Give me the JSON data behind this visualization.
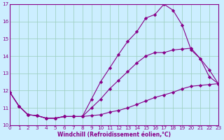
{
  "xlabel": "Windchill (Refroidissement éolien,°C)",
  "ylabel": "",
  "bg_color": "#cceeff",
  "line_color": "#880088",
  "grid_color": "#99ccbb",
  "xlim": [
    0,
    23
  ],
  "ylim": [
    10,
    17
  ],
  "yticks": [
    10,
    11,
    12,
    13,
    14,
    15,
    16,
    17
  ],
  "xticks": [
    0,
    1,
    2,
    3,
    4,
    5,
    6,
    7,
    8,
    9,
    10,
    11,
    12,
    13,
    14,
    15,
    16,
    17,
    18,
    19,
    20,
    21,
    22,
    23
  ],
  "line1_x": [
    0,
    1,
    2,
    3,
    4,
    5,
    6,
    7,
    8,
    9,
    10,
    11,
    12,
    13,
    14,
    15,
    16,
    17,
    18,
    19,
    20,
    21,
    22,
    23
  ],
  "line1_y": [
    11.9,
    11.1,
    10.6,
    10.55,
    10.4,
    10.4,
    10.5,
    10.5,
    10.5,
    10.55,
    10.6,
    10.75,
    10.85,
    11.0,
    11.2,
    11.4,
    11.6,
    11.75,
    11.9,
    12.1,
    12.25,
    12.3,
    12.35,
    12.4
  ],
  "line2_x": [
    0,
    1,
    2,
    3,
    4,
    5,
    6,
    7,
    8,
    9,
    10,
    11,
    12,
    13,
    14,
    15,
    16,
    17,
    18,
    19,
    20,
    21,
    22,
    23
  ],
  "line2_y": [
    11.9,
    11.1,
    10.6,
    10.55,
    10.4,
    10.4,
    10.5,
    10.5,
    10.5,
    11.0,
    11.5,
    12.1,
    12.6,
    13.1,
    13.6,
    14.0,
    14.2,
    14.2,
    14.35,
    14.4,
    14.45,
    13.85,
    13.2,
    12.4
  ],
  "line3_x": [
    0,
    1,
    2,
    3,
    4,
    5,
    6,
    7,
    8,
    9,
    10,
    11,
    12,
    13,
    14,
    15,
    16,
    17,
    18,
    19,
    20,
    21,
    22,
    23
  ],
  "line3_y": [
    11.9,
    11.1,
    10.6,
    10.55,
    10.4,
    10.4,
    10.5,
    10.5,
    10.5,
    11.5,
    12.5,
    13.3,
    14.1,
    14.85,
    15.4,
    16.2,
    16.4,
    17.0,
    16.65,
    15.8,
    14.35,
    13.85,
    12.8,
    12.4
  ]
}
